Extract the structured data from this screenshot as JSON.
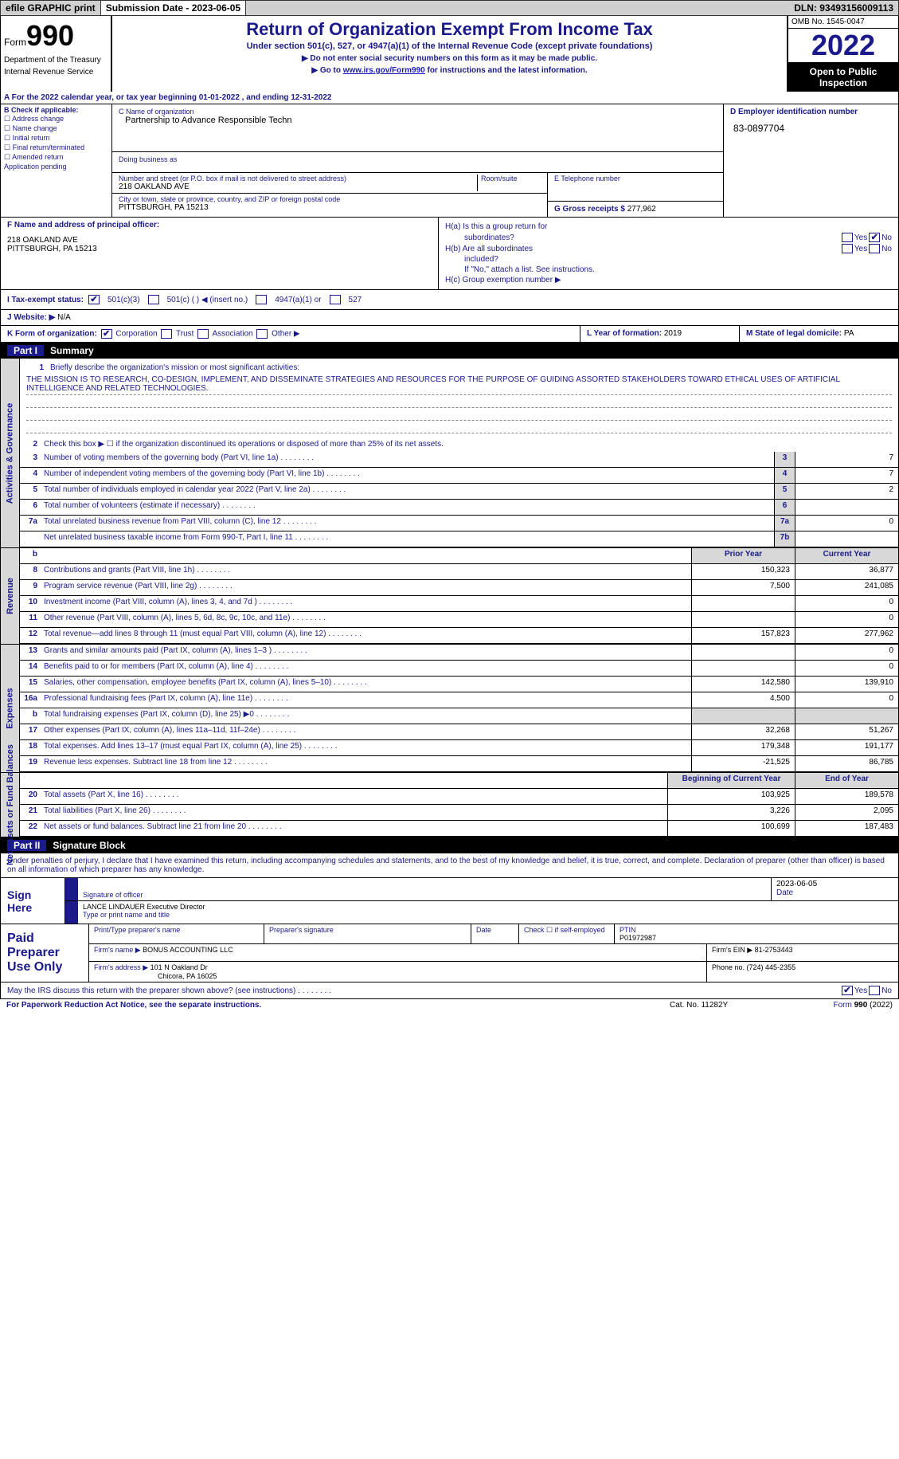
{
  "topbar": {
    "efile": "efile GRAPHIC print",
    "submission": "Submission Date - 2023-06-05",
    "dln": "DLN: 93493156009113"
  },
  "header": {
    "form_prefix": "Form",
    "form_number": "990",
    "dept": "Department of the Treasury",
    "irs": "Internal Revenue Service",
    "title": "Return of Organization Exempt From Income Tax",
    "subtitle": "Under section 501(c), 527, or 4947(a)(1) of the Internal Revenue Code (except private foundations)",
    "note1": "▶ Do not enter social security numbers on this form as it may be made public.",
    "note2_prefix": "▶ Go to ",
    "note2_link": "www.irs.gov/Form990",
    "note2_suffix": " for instructions and the latest information.",
    "omb": "OMB No. 1545-0047",
    "year": "2022",
    "open1": "Open to Public",
    "open2": "Inspection"
  },
  "row_a": "A For the 2022 calendar year, or tax year beginning 01-01-2022    , and ending 12-31-2022",
  "box_b": {
    "label": "B Check if applicable:",
    "opts": [
      "☐ Address change",
      "☐ Name change",
      "☐ Initial return",
      "☐ Final return/terminated",
      "☐ Amended return",
      "   Application pending"
    ]
  },
  "box_c": {
    "name_lbl": "C Name of organization",
    "name": "Partnership to Advance Responsible Techn",
    "dba_lbl": "Doing business as",
    "street_lbl": "Number and street (or P.O. box if mail is not delivered to street address)",
    "street": "218 OAKLAND AVE",
    "room_lbl": "Room/suite",
    "city_lbl": "City or town, state or province, country, and ZIP or foreign postal code",
    "city": "PITTSBURGH, PA  15213"
  },
  "box_d": {
    "lbl": "D Employer identification number",
    "val": "83-0897704"
  },
  "box_e": {
    "lbl": "E Telephone number"
  },
  "box_g": {
    "lbl": "G Gross receipts $",
    "val": "277,962"
  },
  "box_f": {
    "lbl": "F Name and address of principal officer:",
    "addr1": "218 OAKLAND AVE",
    "addr2": "PITTSBURGH, PA  15213"
  },
  "box_h": {
    "a1": "H(a)  Is this a group return for",
    "a2": "subordinates?",
    "b1": "H(b)  Are all subordinates",
    "b2": "included?",
    "note": "If \"No,\" attach a list. See instructions.",
    "c": "H(c)  Group exemption number ▶",
    "yes": "Yes",
    "no": "No"
  },
  "row_i": {
    "lbl": "I   Tax-exempt status:",
    "o1": "501(c)(3)",
    "o2": "501(c) (  ) ◀ (insert no.)",
    "o3": "4947(a)(1) or",
    "o4": "527"
  },
  "row_j": {
    "lbl": "J   Website: ▶",
    "val": "N/A"
  },
  "row_k": {
    "lbl": "K Form of organization:",
    "o1": "Corporation",
    "o2": "Trust",
    "o3": "Association",
    "o4": "Other ▶"
  },
  "row_l": {
    "lbl": "L Year of formation:",
    "val": "2019"
  },
  "row_m": {
    "lbl": "M State of legal domicile:",
    "val": "PA"
  },
  "part1": {
    "tab": "Part I",
    "title": "Summary"
  },
  "mission": {
    "lbl": "Briefly describe the organization's mission or most significant activities:",
    "txt": "THE MISSION IS TO RESEARCH, CO-DESIGN, IMPLEMENT, AND DISSEMINATE STRATEGIES AND RESOURCES FOR THE PURPOSE OF GUIDING ASSORTED STAKEHOLDERS TOWARD ETHICAL USES OF ARTIFICIAL INTELLIGENCE AND RELATED TECHNOLOGIES."
  },
  "line2": "Check this box ▶ ☐ if the organization discontinued its operations or disposed of more than 25% of its net assets.",
  "lines_ag": [
    {
      "n": "3",
      "t": "Number of voting members of the governing body (Part VI, line 1a)",
      "c": "3",
      "v": "7"
    },
    {
      "n": "4",
      "t": "Number of independent voting members of the governing body (Part VI, line 1b)",
      "c": "4",
      "v": "7"
    },
    {
      "n": "5",
      "t": "Total number of individuals employed in calendar year 2022 (Part V, line 2a)",
      "c": "5",
      "v": "2"
    },
    {
      "n": "6",
      "t": "Total number of volunteers (estimate if necessary)",
      "c": "6",
      "v": ""
    },
    {
      "n": "7a",
      "t": "Total unrelated business revenue from Part VIII, column (C), line 12",
      "c": "7a",
      "v": "0"
    },
    {
      "n": "",
      "t": "Net unrelated business taxable income from Form 990-T, Part I, line 11",
      "c": "7b",
      "v": ""
    }
  ],
  "hdr_prior": "Prior Year",
  "hdr_curr": "Current Year",
  "lines_rev": [
    {
      "n": "8",
      "t": "Contributions and grants (Part VIII, line 1h)",
      "p": "150,323",
      "v": "36,877"
    },
    {
      "n": "9",
      "t": "Program service revenue (Part VIII, line 2g)",
      "p": "7,500",
      "v": "241,085"
    },
    {
      "n": "10",
      "t": "Investment income (Part VIII, column (A), lines 3, 4, and 7d )",
      "p": "",
      "v": "0"
    },
    {
      "n": "11",
      "t": "Other revenue (Part VIII, column (A), lines 5, 6d, 8c, 9c, 10c, and 11e)",
      "p": "",
      "v": "0"
    },
    {
      "n": "12",
      "t": "Total revenue—add lines 8 through 11 (must equal Part VIII, column (A), line 12)",
      "p": "157,823",
      "v": "277,962"
    }
  ],
  "lines_exp": [
    {
      "n": "13",
      "t": "Grants and similar amounts paid (Part IX, column (A), lines 1–3 )",
      "p": "",
      "v": "0"
    },
    {
      "n": "14",
      "t": "Benefits paid to or for members (Part IX, column (A), line 4)",
      "p": "",
      "v": "0"
    },
    {
      "n": "15",
      "t": "Salaries, other compensation, employee benefits (Part IX, column (A), lines 5–10)",
      "p": "142,580",
      "v": "139,910"
    },
    {
      "n": "16a",
      "t": "Professional fundraising fees (Part IX, column (A), line 11e)",
      "p": "4,500",
      "v": "0"
    },
    {
      "n": "b",
      "t": "Total fundraising expenses (Part IX, column (D), line 25) ▶0",
      "p": "",
      "v": "",
      "sh": true
    },
    {
      "n": "17",
      "t": "Other expenses (Part IX, column (A), lines 11a–11d, 11f–24e)",
      "p": "32,268",
      "v": "51,267"
    },
    {
      "n": "18",
      "t": "Total expenses. Add lines 13–17 (must equal Part IX, column (A), line 25)",
      "p": "179,348",
      "v": "191,177"
    },
    {
      "n": "19",
      "t": "Revenue less expenses. Subtract line 18 from line 12",
      "p": "-21,525",
      "v": "86,785"
    }
  ],
  "hdr_beg": "Beginning of Current Year",
  "hdr_end": "End of Year",
  "lines_na": [
    {
      "n": "20",
      "t": "Total assets (Part X, line 16)",
      "p": "103,925",
      "v": "189,578"
    },
    {
      "n": "21",
      "t": "Total liabilities (Part X, line 26)",
      "p": "3,226",
      "v": "2,095"
    },
    {
      "n": "22",
      "t": "Net assets or fund balances. Subtract line 21 from line 20",
      "p": "100,699",
      "v": "187,483"
    }
  ],
  "vlabels": {
    "ag": "Activities & Governance",
    "rev": "Revenue",
    "exp": "Expenses",
    "na": "Net Assets or Fund Balances"
  },
  "part2": {
    "tab": "Part II",
    "title": "Signature Block"
  },
  "sig_intro": "Under penalties of perjury, I declare that I have examined this return, including accompanying schedules and statements, and to the best of my knowledge and belief, it is true, correct, and complete. Declaration of preparer (other than officer) is based on all information of which preparer has any knowledge.",
  "sig": {
    "here": "Sign Here",
    "sig_lbl": "Signature of officer",
    "date_lbl": "Date",
    "date_val": "2023-06-05",
    "name": "LANCE LINDAUER  Executive Director",
    "name_lbl": "Type or print name and title"
  },
  "prep": {
    "label": "Paid Preparer Use Only",
    "r1c1": "Print/Type preparer's name",
    "r1c2": "Preparer's signature",
    "r1c3": "Date",
    "r1c4": "Check ☐ if self-employed",
    "r1c5l": "PTIN",
    "r1c5v": "P01972987",
    "r2l": "Firm's name     ▶",
    "r2v": "BONUS ACCOUNTING LLC",
    "r2r": "Firm's EIN ▶ 81-2753443",
    "r3l": "Firm's address ▶",
    "r3v1": "101 N Oakland Dr",
    "r3v2": "Chicora, PA  16025",
    "r3r": "Phone no. (724) 445-2355"
  },
  "discuss": {
    "txt": "May the IRS discuss this return with the preparer shown above? (see instructions)",
    "yes": "Yes",
    "no": "No"
  },
  "footer": {
    "l": "For Paperwork Reduction Act Notice, see the separate instructions.",
    "c": "Cat. No. 11282Y",
    "r": "Form 990 (2022)"
  }
}
